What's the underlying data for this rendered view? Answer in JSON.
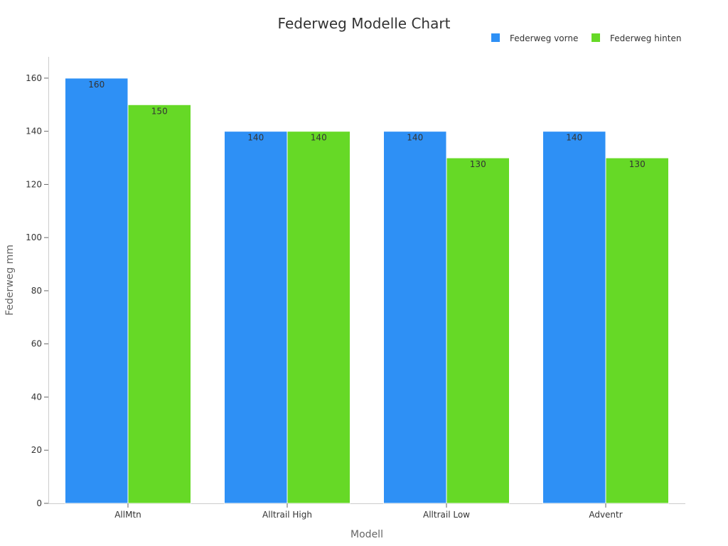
{
  "chart_data": {
    "type": "bar",
    "title": "Federweg Modelle Chart",
    "xlabel": "Modell",
    "ylabel": "Federweg mm",
    "categories": [
      "AllMtn",
      "Alltrail High",
      "Alltrail Low",
      "Adventr"
    ],
    "series": [
      {
        "name": "Federweg vorne",
        "color": "#2e90f5",
        "values": [
          160,
          140,
          140,
          140
        ]
      },
      {
        "name": "Federweg hinten",
        "color": "#66d926",
        "values": [
          150,
          140,
          130,
          130
        ]
      }
    ],
    "ylim": [
      0,
      168
    ],
    "yticks": [
      0,
      20,
      40,
      60,
      80,
      100,
      120,
      140,
      160
    ],
    "legend_position": "top-right",
    "grid": false,
    "data_labels": true
  }
}
